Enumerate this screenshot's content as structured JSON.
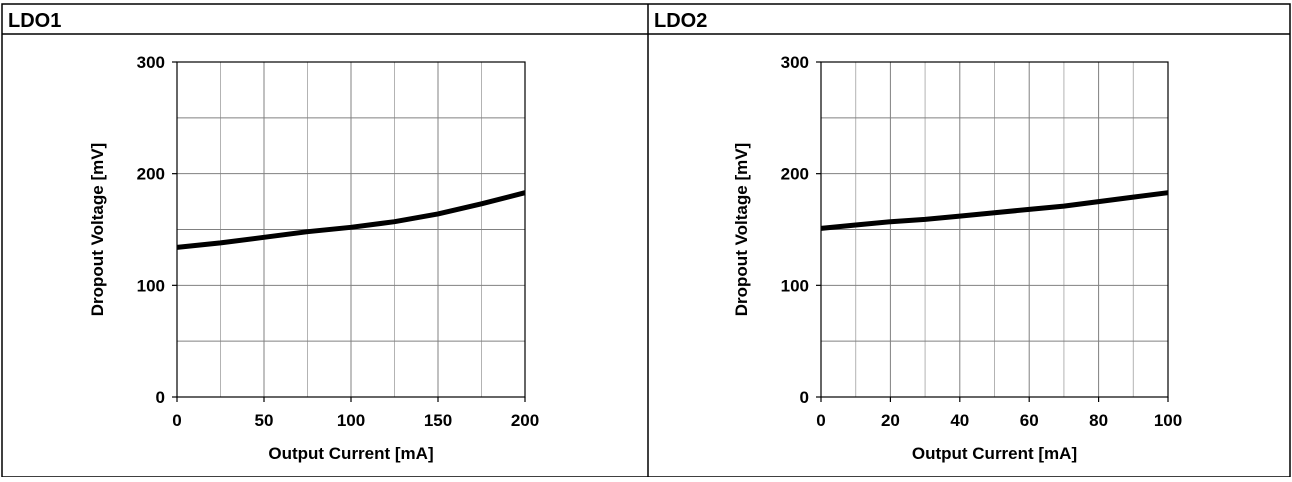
{
  "panels": [
    {
      "title": "LDO1"
    },
    {
      "title": "LDO2"
    }
  ],
  "chart_data": [
    {
      "type": "line",
      "title": "",
      "xlabel": "Output Current [mA]",
      "ylabel": "Dropout Voltage [mV]",
      "xlim": [
        0,
        200
      ],
      "ylim": [
        0,
        300
      ],
      "x_major_ticks": [
        0,
        50,
        100,
        150,
        200
      ],
      "x_minor_step": 25,
      "y_major_ticks": [
        0,
        100,
        200,
        300
      ],
      "y_minor_step": 50,
      "grid": true,
      "line_color": "#000000",
      "series": [
        {
          "x": [
            0,
            25,
            50,
            75,
            100,
            125,
            150,
            175,
            200
          ],
          "values": [
            134,
            138,
            143,
            148,
            152,
            157,
            164,
            173,
            183
          ]
        }
      ]
    },
    {
      "type": "line",
      "title": "",
      "xlabel": "Output Current [mA]",
      "ylabel": "Dropout Voltage [mV]",
      "xlim": [
        0,
        100
      ],
      "ylim": [
        0,
        300
      ],
      "x_major_ticks": [
        0,
        20,
        40,
        60,
        80,
        100
      ],
      "x_minor_step": 10,
      "y_major_ticks": [
        0,
        100,
        200,
        300
      ],
      "y_minor_step": 50,
      "grid": true,
      "line_color": "#000000",
      "series": [
        {
          "x": [
            0,
            10,
            20,
            30,
            40,
            50,
            60,
            70,
            80,
            90,
            100
          ],
          "values": [
            151,
            154,
            157,
            159,
            162,
            165,
            168,
            171,
            175,
            179,
            183
          ]
        }
      ]
    }
  ]
}
